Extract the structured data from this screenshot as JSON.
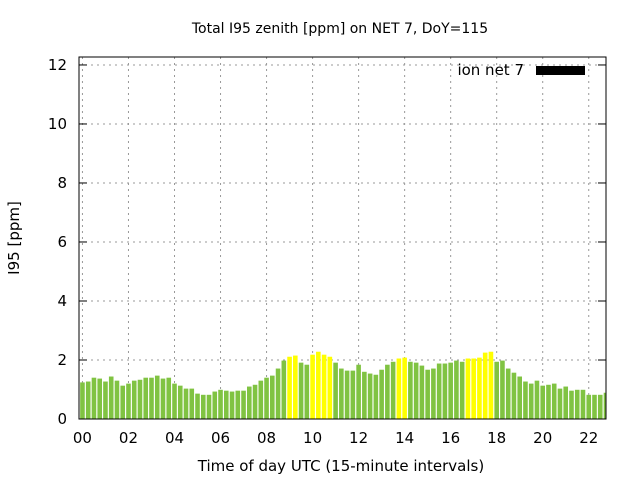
{
  "chart_data": {
    "type": "bar",
    "title": "Total I95 zenith [ppm] on NET 7, DoY=115",
    "xlabel": "Time of day UTC (15-minute intervals)",
    "ylabel": "I95 [ppm]",
    "xlim": [
      -0.15,
      22.75
    ],
    "ylim": [
      0,
      12.27
    ],
    "x_ticks": [
      0,
      2,
      4,
      6,
      8,
      10,
      12,
      14,
      16,
      18,
      20,
      22
    ],
    "x_tick_labels": [
      "00",
      "02",
      "04",
      "06",
      "08",
      "10",
      "12",
      "14",
      "16",
      "18",
      "20",
      "22"
    ],
    "y_ticks": [
      0,
      2,
      4,
      6,
      8,
      10,
      12
    ],
    "y_tick_labels": [
      "0",
      "2",
      "4",
      "6",
      "8",
      "10",
      "12"
    ],
    "grid": true,
    "legend": {
      "label": "ion net 7",
      "placement": "top-right",
      "color": "#000000"
    },
    "x_start": 0,
    "x_step": 0.25,
    "highlight_threshold": 2.0,
    "colors": {
      "normal": "#80c342",
      "high": "#ffff00"
    },
    "values": [
      1.24,
      1.27,
      1.4,
      1.37,
      1.27,
      1.44,
      1.3,
      1.13,
      1.2,
      1.3,
      1.33,
      1.4,
      1.4,
      1.47,
      1.37,
      1.4,
      1.2,
      1.13,
      1.03,
      1.03,
      0.86,
      0.82,
      0.82,
      0.93,
      0.99,
      0.96,
      0.93,
      0.96,
      0.96,
      1.1,
      1.16,
      1.3,
      1.4,
      1.47,
      1.71,
      1.98,
      2.11,
      2.15,
      1.91,
      1.84,
      2.18,
      2.28,
      2.18,
      2.11,
      1.91,
      1.71,
      1.64,
      1.64,
      1.84,
      1.6,
      1.54,
      1.5,
      1.67,
      1.84,
      1.94,
      2.05,
      2.08,
      1.94,
      1.91,
      1.81,
      1.67,
      1.71,
      1.88,
      1.88,
      1.91,
      1.98,
      1.94,
      2.05,
      2.05,
      2.08,
      2.25,
      2.28,
      1.94,
      1.98,
      1.71,
      1.57,
      1.44,
      1.27,
      1.2,
      1.3,
      1.13,
      1.16,
      1.2,
      1.03,
      1.1,
      0.96,
      0.99,
      0.99,
      0.82,
      0.82,
      0.82,
      0.89
    ]
  }
}
